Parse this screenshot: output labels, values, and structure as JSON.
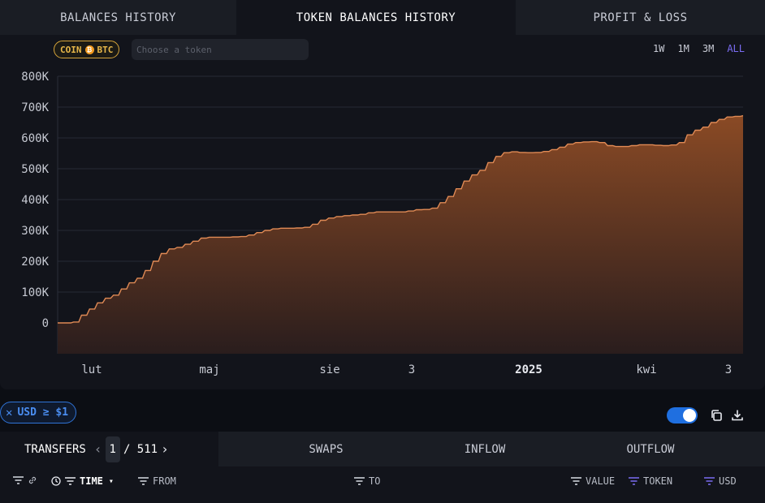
{
  "tabs_top": [
    {
      "label": "BALANCES HISTORY"
    },
    {
      "label": "TOKEN BALANCES HISTORY"
    },
    {
      "label": "PROFIT & LOSS"
    }
  ],
  "coin_chip": {
    "prefix": "COIN",
    "icon_glyph": "₿",
    "symbol": "BTC"
  },
  "token_search": {
    "placeholder": "Choose a token",
    "value": ""
  },
  "ranges": [
    {
      "label": "1W",
      "active": false
    },
    {
      "label": "1M",
      "active": false
    },
    {
      "label": "3M",
      "active": false
    },
    {
      "label": "ALL",
      "active": true
    }
  ],
  "chart_data": {
    "type": "area",
    "y_ticks": [
      "800K",
      "700K",
      "600K",
      "500K",
      "400K",
      "300K",
      "200K",
      "100K",
      "0"
    ],
    "ylim": [
      -100000,
      800000
    ],
    "x_ticks": [
      {
        "label": "lut",
        "bold": false
      },
      {
        "label": "maj",
        "bold": false
      },
      {
        "label": "sie",
        "bold": false
      },
      {
        "label": "3",
        "bold": false
      },
      {
        "label": "2025",
        "bold": true
      },
      {
        "label": "kwi",
        "bold": false
      },
      {
        "label": "3",
        "bold": false
      }
    ],
    "fill_color_top": "#8a4a25",
    "fill_color_bottom": "#2a1d1d",
    "line_color": "#e08a55",
    "values": [
      0,
      0,
      3000,
      25000,
      45000,
      65000,
      80000,
      90000,
      110000,
      130000,
      145000,
      170000,
      200000,
      225000,
      240000,
      245000,
      255000,
      265000,
      275000,
      278000,
      278000,
      278000,
      279000,
      280000,
      285000,
      293000,
      300000,
      305000,
      307000,
      307000,
      308000,
      310000,
      320000,
      333000,
      340000,
      345000,
      348000,
      350000,
      352000,
      357000,
      360000,
      360000,
      360000,
      360000,
      363000,
      367000,
      368000,
      372000,
      390000,
      410000,
      435000,
      460000,
      480000,
      495000,
      520000,
      540000,
      552000,
      555000,
      553000,
      552000,
      553000,
      556000,
      562000,
      570000,
      580000,
      585000,
      587000,
      588000,
      585000,
      575000,
      572000,
      572000,
      575000,
      578000,
      578000,
      576000,
      575000,
      577000,
      585000,
      610000,
      625000,
      635000,
      650000,
      660000,
      668000,
      670000,
      672000
    ]
  },
  "filter_chip": {
    "close_glyph": "✕",
    "label": "USD ≥ $1"
  },
  "tabs_bottom": {
    "transfers_label": "TRANSFERS",
    "prev_glyph": "‹",
    "page_current": "1",
    "page_total": "/ 511",
    "next_glyph": "›",
    "others": [
      {
        "label": "SWAPS"
      },
      {
        "label": "INFLOW"
      },
      {
        "label": "OUTFLOW"
      }
    ]
  },
  "table_header": {
    "time": "TIME",
    "from": "FROM",
    "to": "TO",
    "value": "VALUE",
    "token": "TOKEN",
    "usd": "USD",
    "sort_glyph": "▾"
  },
  "colors": {
    "accent_purple": "#7a6cf2",
    "accent_blue": "#1f6fe0",
    "btc_gold": "#e8b84a"
  }
}
